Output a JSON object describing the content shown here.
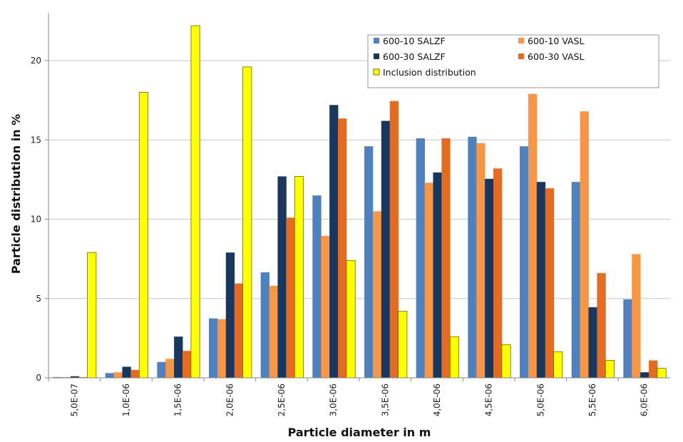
{
  "chart_data": {
    "type": "bar",
    "xlabel": "Particle diameter in m",
    "ylabel": "Particle distribution in %",
    "categories": [
      "5,0E-07",
      "1,0E-06",
      "1,5E-06",
      "2,0E-06",
      "2,5E-06",
      "3,0E-06",
      "3,5E-06",
      "4,0E-06",
      "4,5E-06",
      "5,0E-06",
      "5,5E-06",
      "6,0E-06"
    ],
    "ylim": [
      0,
      23
    ],
    "yticks": [
      0,
      5,
      10,
      15,
      20
    ],
    "grid": "horizontal",
    "legend_position": "top-right",
    "series": [
      {
        "name": "600-10 SALZF",
        "color": "#4f81bd",
        "values": [
          0.05,
          0.3,
          1.0,
          3.75,
          6.65,
          11.5,
          14.6,
          15.1,
          15.2,
          14.6,
          12.35,
          4.95
        ]
      },
      {
        "name": "600-10 VASL",
        "color": "#f79646",
        "values": [
          0.05,
          0.35,
          1.2,
          3.7,
          5.8,
          8.95,
          10.5,
          12.3,
          14.8,
          17.9,
          16.8,
          7.8
        ]
      },
      {
        "name": "600-30 SALZF",
        "color": "#17375e",
        "values": [
          0.1,
          0.7,
          2.6,
          7.9,
          12.7,
          17.2,
          16.2,
          12.95,
          12.55,
          12.35,
          4.45,
          0.35
        ]
      },
      {
        "name": "600-30 VASL",
        "color": "#e46c22",
        "values": [
          0.05,
          0.5,
          1.7,
          5.95,
          10.1,
          16.35,
          17.45,
          15.1,
          13.2,
          11.95,
          6.6,
          1.1
        ]
      },
      {
        "name": "Inclusion distribution",
        "color": "#ffff00",
        "values": [
          7.9,
          18.0,
          22.2,
          19.6,
          12.7,
          7.4,
          4.2,
          2.6,
          2.1,
          1.65,
          1.1,
          0.6
        ]
      }
    ]
  }
}
